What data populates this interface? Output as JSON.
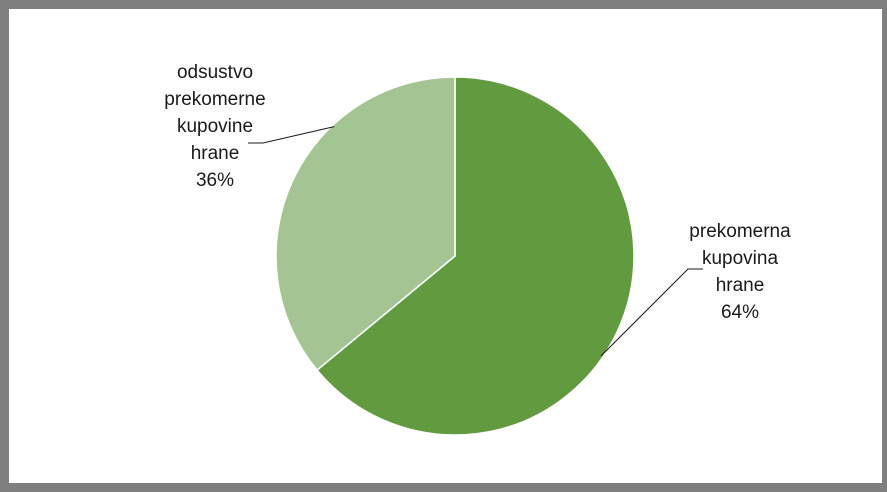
{
  "chart_data": {
    "type": "pie",
    "title": "",
    "slices": [
      {
        "label": "prekomerna kupovina hrane",
        "label_lines": [
          "prekomerna",
          "kupovina",
          "hrane"
        ],
        "value": 64,
        "value_text": "64%",
        "color": "#629b3f"
      },
      {
        "label": "odsustvo prekomerne kupovine hrane",
        "label_lines": [
          "odsustvo",
          "prekomerne",
          "kupovine",
          "hrane"
        ],
        "value": 36,
        "value_text": "36%",
        "color": "#a4c493"
      }
    ],
    "start_angle": "12 o'clock",
    "direction": "clockwise",
    "legend": "none",
    "label_style": "outside-with-leader-lines"
  },
  "colors": {
    "border": "#7f7f7f",
    "slice_separator": "#ffffff",
    "leader_line": "#1a1a1a"
  }
}
